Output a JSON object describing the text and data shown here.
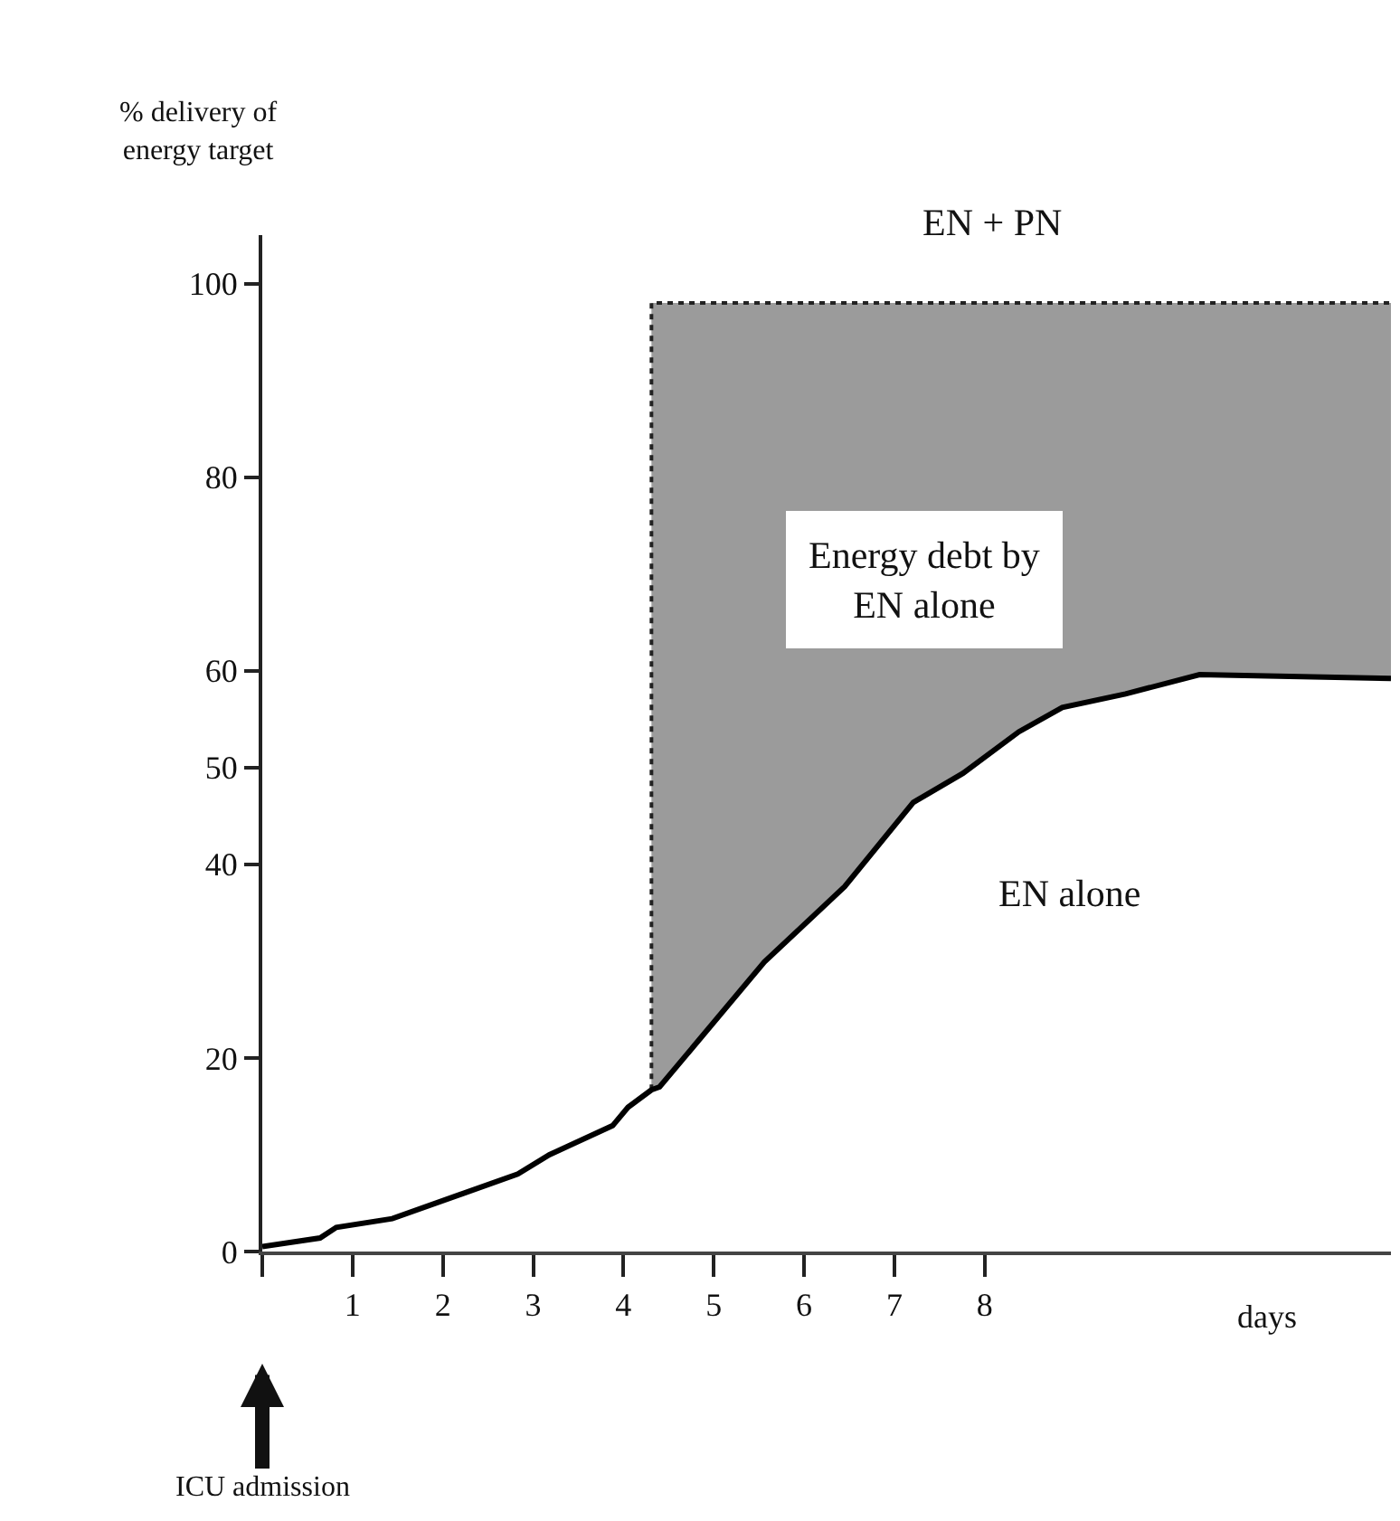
{
  "chart_data": {
    "type": "line",
    "ylabel": "% delivery of energy target",
    "xlabel": "days",
    "xlim": [
      0,
      12.5
    ],
    "xticks": [
      {
        "value": 0,
        "label": null
      },
      1,
      2,
      3,
      4,
      5,
      6,
      7,
      8
    ],
    "ylim": [
      0,
      105
    ],
    "yticks": [
      0,
      20,
      40,
      50,
      60,
      80,
      100
    ],
    "marker": "none",
    "series": [
      {
        "type": "line",
        "line_style": "dotted",
        "color": "#222222",
        "x": [
          4.31,
          4.31,
          4.4,
          5.56,
          6.45,
          7.21,
          7.76,
          8.38,
          8.86,
          9.56,
          10.38,
          12.5
        ],
        "values": [
          16.7,
          98,
          98,
          98,
          98,
          98,
          98,
          98,
          98,
          98,
          98,
          98
        ],
        "lower": [
          16.7,
          16.7,
          17,
          29.9,
          37.7,
          46.4,
          49.4,
          53.7,
          56.2,
          57.6,
          59.6,
          59.2
        ],
        "upper": [
          16.7,
          98,
          98,
          98,
          98,
          98,
          98,
          98,
          98,
          98,
          98,
          98
        ]
      },
      {
        "line_style": "solid",
        "color": "#000000",
        "x": [
          0,
          0.64,
          0.82,
          1.44,
          2.83,
          3.18,
          3.88,
          4.05,
          4.31,
          4.4,
          5.56,
          6.45,
          7.21,
          7.76,
          8.38,
          8.86,
          9.56,
          10.38,
          12.5
        ],
        "values": [
          0.5,
          1.4,
          2.5,
          3.4,
          8,
          10,
          13,
          14.9,
          16.7,
          17,
          29.9,
          37.7,
          46.4,
          49.4,
          53.7,
          56.2,
          57.6,
          59.6,
          59.2
        ]
      }
    ],
    "annotations": [
      "EN + PN",
      "Energy debt by EN alone",
      "EN alone",
      "ICU admission"
    ]
  }
}
